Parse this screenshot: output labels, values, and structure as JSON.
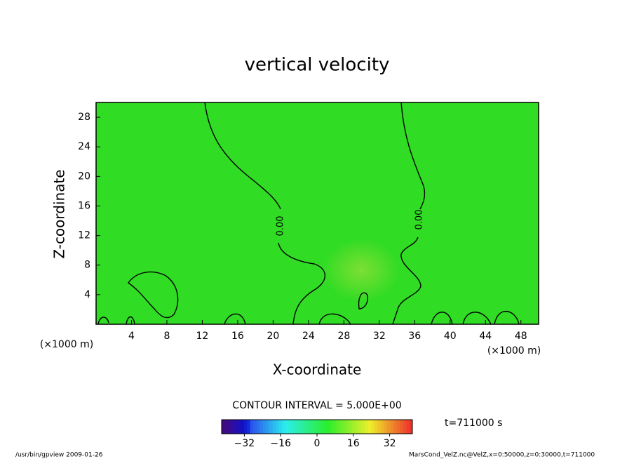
{
  "chart_data": {
    "type": "contour",
    "title": "vertical velocity",
    "xlabel": "X-coordinate",
    "ylabel": "Z-coordinate",
    "xunit": "(×1000 m)",
    "xlim": [
      0,
      50
    ],
    "ylim": [
      0,
      30
    ],
    "xticks": [
      4,
      8,
      12,
      16,
      20,
      24,
      28,
      32,
      36,
      40,
      44,
      48
    ],
    "yticks": [
      4,
      8,
      12,
      16,
      20,
      24,
      28
    ],
    "color": "#30dc24",
    "contour_labels": [
      "0.00",
      "0.00"
    ],
    "contour_interval_text": "CONTOUR INTERVAL = 5.000E+00",
    "time_text": "t=711000 s",
    "colorbar": {
      "lim": [
        -42,
        42
      ],
      "ticks": [
        {
          "value": -32,
          "label": "−32"
        },
        {
          "value": -16,
          "label": "−16"
        },
        0,
        16,
        32
      ]
    },
    "footer_left": "/usr/bin/gpview  2009-01-26",
    "footer_right": "MarsCond_VelZ.nc@VelZ,x=0:50000,z=0:30000,t=711000"
  }
}
